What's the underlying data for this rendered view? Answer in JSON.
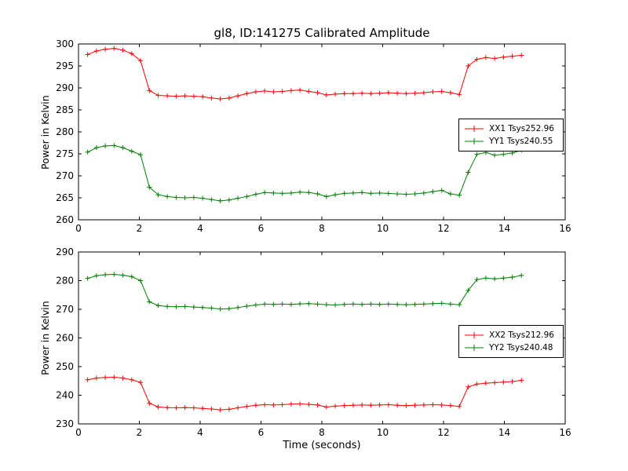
{
  "title": "gl8, ID:141275 Calibrated Amplitude",
  "chart_data": [
    {
      "type": "line",
      "title": "",
      "xlabel": "",
      "ylabel": "Power in Kelvin",
      "xlim": [
        0,
        16
      ],
      "ylim": [
        260,
        300
      ],
      "xticks": [
        0,
        2,
        4,
        6,
        8,
        10,
        12,
        14,
        16
      ],
      "yticks": [
        260,
        265,
        270,
        275,
        280,
        285,
        290,
        295,
        300
      ],
      "legend_position": "center right",
      "grid": false,
      "marker": "plus",
      "x": [
        0.3,
        0.59,
        0.88,
        1.17,
        1.46,
        1.75,
        2.04,
        2.33,
        2.62,
        2.92,
        3.21,
        3.5,
        3.79,
        4.08,
        4.37,
        4.66,
        4.95,
        5.24,
        5.53,
        5.83,
        6.12,
        6.41,
        6.7,
        6.99,
        7.28,
        7.57,
        7.86,
        8.15,
        8.44,
        8.74,
        9.03,
        9.32,
        9.61,
        9.9,
        10.19,
        10.48,
        10.77,
        11.06,
        11.35,
        11.65,
        11.94,
        12.23,
        12.52,
        12.81,
        13.1,
        13.39,
        13.68,
        13.97,
        14.26,
        14.56
      ],
      "series": [
        {
          "name": "XX1 Tsys252.96",
          "color": "#ff0000",
          "y": [
            297.6,
            298.4,
            298.8,
            299.0,
            298.6,
            297.8,
            296.2,
            289.4,
            288.3,
            288.2,
            288.1,
            288.2,
            288.1,
            288.0,
            287.7,
            287.5,
            287.7,
            288.2,
            288.7,
            289.1,
            289.3,
            289.1,
            289.2,
            289.4,
            289.5,
            289.2,
            288.9,
            288.4,
            288.6,
            288.7,
            288.7,
            288.8,
            288.7,
            288.8,
            288.9,
            288.8,
            288.7,
            288.8,
            288.9,
            289.1,
            289.2,
            288.9,
            288.5,
            295.0,
            296.5,
            296.9,
            296.7,
            297.0,
            297.2,
            297.4
          ]
        },
        {
          "name": "YY1 Tsys240.55",
          "color": "#008000",
          "y": [
            275.4,
            276.4,
            276.8,
            276.9,
            276.4,
            275.6,
            274.8,
            267.4,
            265.7,
            265.3,
            265.1,
            265.0,
            265.1,
            264.9,
            264.6,
            264.3,
            264.5,
            264.9,
            265.3,
            265.8,
            266.2,
            266.1,
            266.0,
            266.1,
            266.3,
            266.2,
            265.9,
            265.3,
            265.7,
            266.0,
            266.1,
            266.2,
            266.0,
            266.1,
            266.0,
            265.9,
            265.8,
            265.9,
            266.1,
            266.4,
            266.7,
            265.9,
            265.6,
            270.8,
            274.9,
            275.3,
            274.7,
            274.9,
            275.2,
            275.8
          ]
        }
      ]
    },
    {
      "type": "line",
      "title": "",
      "xlabel": "Time (seconds)",
      "ylabel": "Power in Kelvin",
      "xlim": [
        0,
        16
      ],
      "ylim": [
        230,
        290
      ],
      "xticks": [
        0,
        2,
        4,
        6,
        8,
        10,
        12,
        14,
        16
      ],
      "yticks": [
        230,
        240,
        250,
        260,
        270,
        280,
        290
      ],
      "legend_position": "center right",
      "grid": false,
      "marker": "plus",
      "x": [
        0.3,
        0.59,
        0.88,
        1.17,
        1.46,
        1.75,
        2.04,
        2.33,
        2.62,
        2.92,
        3.21,
        3.5,
        3.79,
        4.08,
        4.37,
        4.66,
        4.95,
        5.24,
        5.53,
        5.83,
        6.12,
        6.41,
        6.7,
        6.99,
        7.28,
        7.57,
        7.86,
        8.15,
        8.44,
        8.74,
        9.03,
        9.32,
        9.61,
        9.9,
        10.19,
        10.48,
        10.77,
        11.06,
        11.35,
        11.65,
        11.94,
        12.23,
        12.52,
        12.81,
        13.1,
        13.39,
        13.68,
        13.97,
        14.26,
        14.56
      ],
      "series": [
        {
          "name": "XX2 Tsys212.96",
          "color": "#ff0000",
          "y": [
            245.4,
            246.0,
            246.2,
            246.3,
            246.0,
            245.4,
            244.5,
            237.2,
            235.9,
            235.7,
            235.6,
            235.7,
            235.6,
            235.4,
            235.2,
            234.9,
            235.1,
            235.6,
            236.1,
            236.5,
            236.7,
            236.6,
            236.7,
            236.9,
            237.0,
            236.8,
            236.6,
            235.9,
            236.2,
            236.4,
            236.5,
            236.6,
            236.5,
            236.6,
            236.7,
            236.5,
            236.4,
            236.5,
            236.6,
            236.7,
            236.6,
            236.4,
            236.1,
            242.9,
            243.9,
            244.2,
            244.4,
            244.6,
            244.8,
            245.2
          ]
        },
        {
          "name": "YY2 Tsys240.48",
          "color": "#008000",
          "y": [
            280.8,
            281.7,
            282.1,
            282.2,
            281.9,
            281.4,
            280.0,
            272.6,
            271.3,
            271.0,
            270.9,
            271.0,
            270.8,
            270.6,
            270.4,
            270.1,
            270.2,
            270.6,
            271.1,
            271.5,
            271.8,
            271.7,
            271.8,
            271.7,
            271.9,
            272.0,
            271.8,
            271.6,
            271.5,
            271.7,
            271.8,
            271.7,
            271.8,
            271.7,
            271.8,
            271.7,
            271.6,
            271.7,
            271.8,
            272.0,
            272.1,
            271.8,
            271.6,
            276.6,
            280.4,
            280.9,
            280.6,
            280.9,
            281.2,
            281.8
          ]
        }
      ]
    }
  ]
}
